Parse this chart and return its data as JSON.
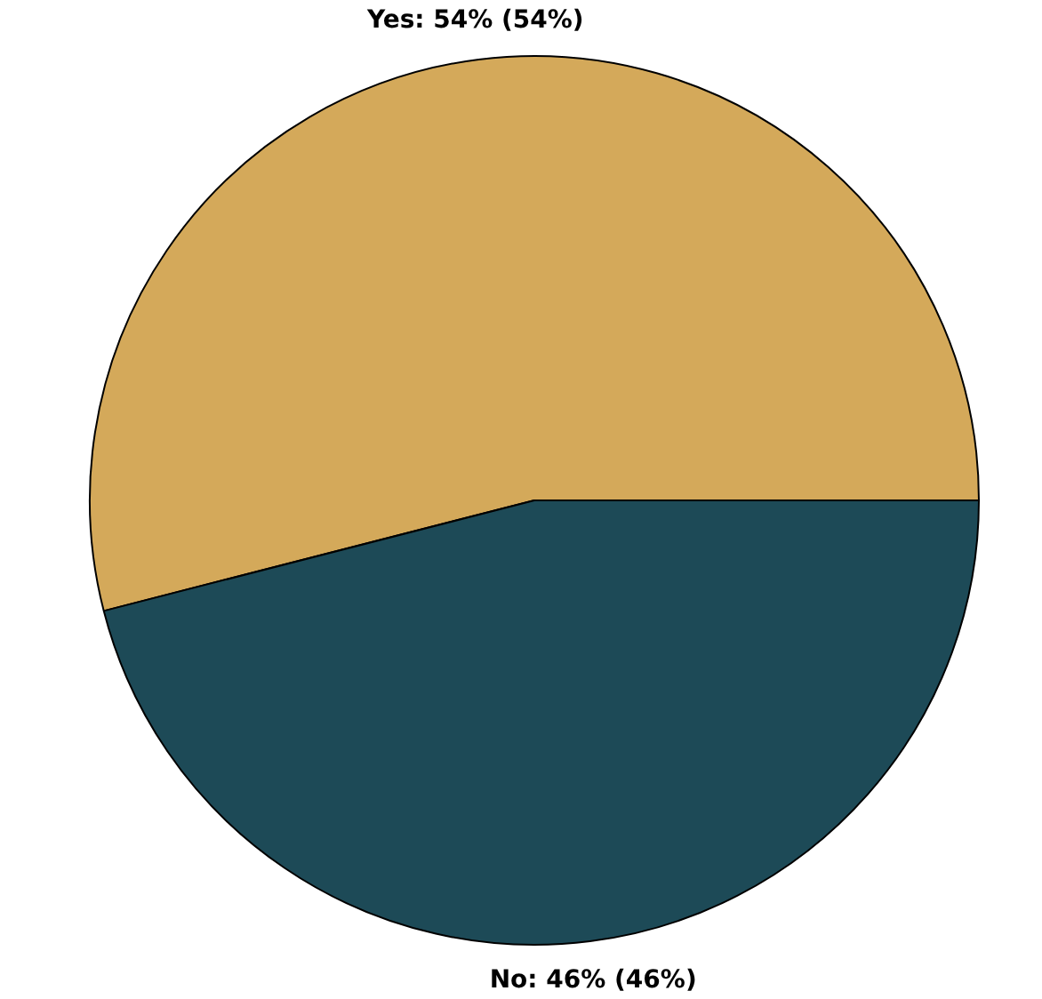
{
  "chart_data": {
    "type": "pie",
    "categories": [
      "Yes",
      "No"
    ],
    "values": [
      54,
      46
    ],
    "colors": [
      "#d4a95a",
      "#1d4a57"
    ],
    "value_labels": [
      "54% (54%)",
      "46% (46%)"
    ]
  }
}
